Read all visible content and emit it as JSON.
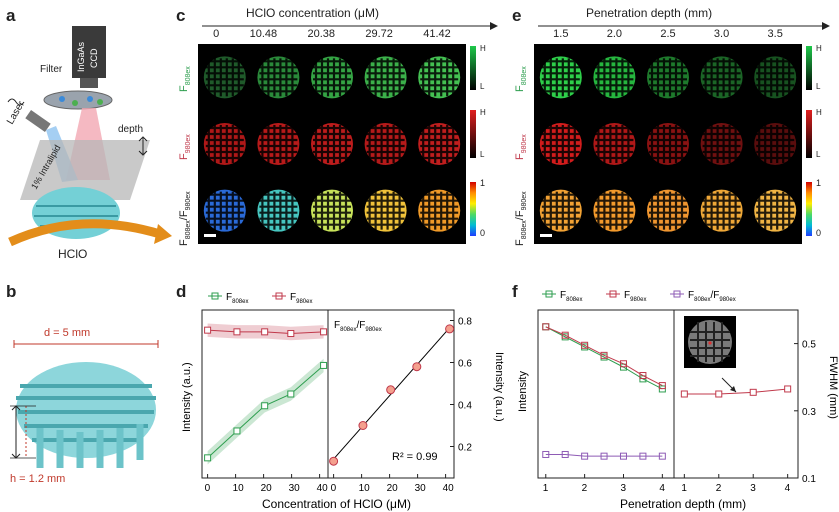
{
  "panels": {
    "a": "a",
    "b": "b",
    "c": "c",
    "d": "d",
    "e": "e",
    "f": "f"
  },
  "panel_a": {
    "camera_label_1": "InGaAs",
    "camera_label_2": "CCD",
    "filter": "Filter",
    "laser": "Laser",
    "intralipid": "1% Intralipid",
    "depth": "depth",
    "analyte": "HClO"
  },
  "panel_b": {
    "diameter": "d = 5 mm",
    "height": "h = 1.2 mm"
  },
  "panel_c": {
    "header": "HClO concentration (μM)",
    "columns": [
      "0",
      "10.48",
      "20.38",
      "29.72",
      "41.42"
    ],
    "row_labels": {
      "r1_main": "F",
      "r1_sub": "808ex",
      "r2_main": "F",
      "r2_sub": "980ex",
      "r3_a": "F",
      "r3_a_sub": "808ex",
      "r3_sep": "/F",
      "r3_b_sub": "980ex"
    },
    "colorbar_green": {
      "high": "H",
      "low": "L"
    },
    "colorbar_red": {
      "high": "H",
      "low": "L"
    },
    "colorbar_ratio": {
      "high": "1",
      "low": "0"
    }
  },
  "panel_e": {
    "header": "Penetration depth (mm)",
    "columns": [
      "1.5",
      "2.0",
      "2.5",
      "3.0",
      "3.5"
    ],
    "colorbar_green": {
      "high": "H",
      "low": "L"
    },
    "colorbar_red": {
      "high": "H",
      "low": "L"
    },
    "colorbar_ratio": {
      "high": "1",
      "low": "0"
    }
  },
  "colors": {
    "green": "#2e9e4f",
    "red": "#c0394b",
    "purple": "#8e5bb5",
    "fit": "#000000"
  },
  "panel_d": {
    "legend_green_main": "F",
    "legend_green_sub": "808ex",
    "legend_red_main": "F",
    "legend_red_sub": "980ex",
    "left_ylabel": "Intensity (a.u.)",
    "right_title_a": "F",
    "right_title_a_sub": "808ex",
    "right_title_sep": "/F",
    "right_title_b_sub": "980ex",
    "right_ylabel": "Intensity (a.u.)",
    "xlabel": "Concentration of HClO (μM)",
    "r2": "R² = 0.99"
  },
  "panel_f": {
    "legend_green_main": "F",
    "legend_green_sub": "808ex",
    "legend_red_main": "F",
    "legend_red_sub": "980ex",
    "legend_purple_a": "F",
    "legend_purple_a_sub": "808ex",
    "legend_purple_sep": "/F",
    "legend_purple_b_sub": "980ex",
    "left_ylabel": "Intensity",
    "right_ylabel": "FWHM (mm)",
    "xlabel": "Penetration depth (mm)"
  },
  "chart_data": [
    {
      "type": "line",
      "title": "",
      "xlabel": "Concentration of HClO (μM)",
      "ylabel": "Intensity (a.u.)",
      "x": [
        0,
        10.48,
        20.38,
        29.72,
        41.42
      ],
      "xlim": [
        -2,
        43
      ],
      "xticks": [
        "0",
        "10",
        "20",
        "30",
        "40"
      ],
      "ylim": [
        0,
        1
      ],
      "series": [
        {
          "name": "F808ex",
          "values": [
            0.12,
            0.28,
            0.43,
            0.5,
            0.67
          ]
        },
        {
          "name": "F980ex",
          "values": [
            0.88,
            0.87,
            0.87,
            0.86,
            0.87
          ]
        }
      ]
    },
    {
      "type": "scatter",
      "title": "F808ex/F980ex",
      "xlabel": "Concentration of HClO (μM)",
      "ylabel": "Intensity (a.u.)",
      "x": [
        0,
        10.48,
        20.38,
        29.72,
        41.42
      ],
      "xlim": [
        -2,
        43
      ],
      "xticks": [
        "0",
        "10",
        "20",
        "30",
        "40"
      ],
      "ylim": [
        0.05,
        0.85
      ],
      "yticks": [
        "0.2",
        "0.4",
        "0.6",
        "0.8"
      ],
      "series": [
        {
          "name": "F808ex/F980ex",
          "values": [
            0.13,
            0.3,
            0.47,
            0.58,
            0.76
          ]
        }
      ],
      "fit": {
        "type": "linear",
        "r2": 0.99
      }
    },
    {
      "type": "line",
      "title": "",
      "xlabel": "Penetration depth (mm)",
      "ylabel": "Intensity",
      "x": [
        1.0,
        1.5,
        2.0,
        2.5,
        3.0,
        3.5,
        4.0
      ],
      "xlim": [
        0.8,
        4.3
      ],
      "xticks": [
        "1",
        "2",
        "3",
        "4"
      ],
      "ylim": [
        0,
        1
      ],
      "series": [
        {
          "name": "F808ex",
          "values": [
            0.9,
            0.84,
            0.78,
            0.72,
            0.66,
            0.59,
            0.53
          ]
        },
        {
          "name": "F980ex",
          "values": [
            0.9,
            0.85,
            0.79,
            0.73,
            0.68,
            0.61,
            0.55
          ]
        },
        {
          "name": "F808ex/F980ex",
          "values": [
            0.14,
            0.14,
            0.13,
            0.13,
            0.13,
            0.13,
            0.13
          ]
        }
      ]
    },
    {
      "type": "line",
      "title": "",
      "xlabel": "Penetration depth (mm)",
      "ylabel": "FWHM (mm)",
      "x": [
        1,
        2,
        3,
        4
      ],
      "xlim": [
        0.7,
        4.3
      ],
      "xticks": [
        "1",
        "2",
        "3",
        "4"
      ],
      "ylim": [
        0.1,
        0.6
      ],
      "yticks": [
        "0.1",
        "0.3",
        "0.5"
      ],
      "series": [
        {
          "name": "FWHM",
          "values": [
            0.35,
            0.35,
            0.355,
            0.365
          ]
        }
      ]
    }
  ]
}
